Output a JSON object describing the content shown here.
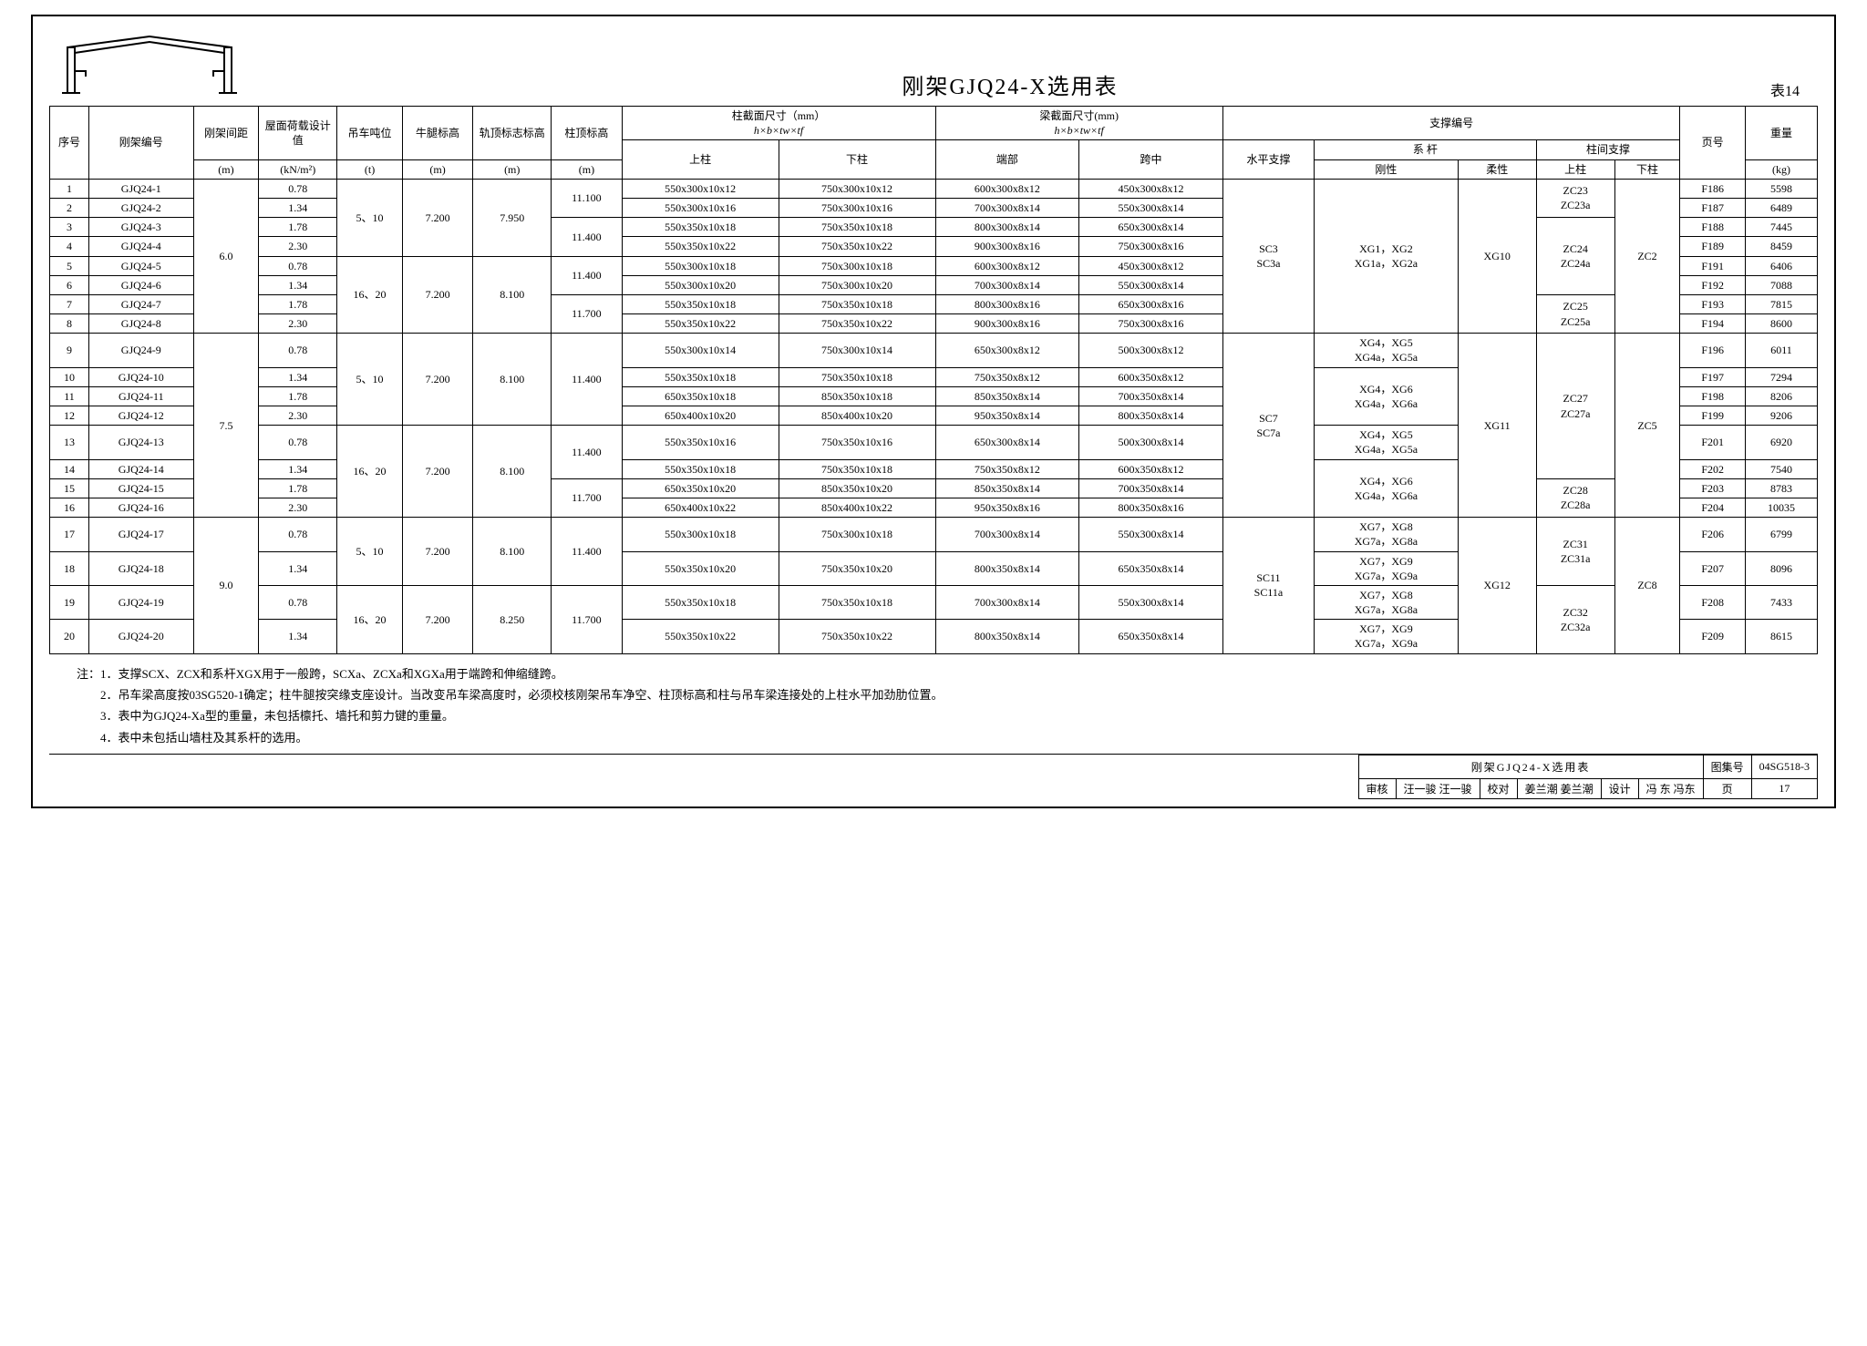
{
  "title": "刚架GJQ24-X选用表",
  "table_label": "表14",
  "header": {
    "seq": "序号",
    "frame_no": "刚架编号",
    "spacing": "刚架间距",
    "spacing_unit": "(m)",
    "roof_load": "屋面荷载设计值",
    "roof_load_unit": "(kN/m²)",
    "crane": "吊车吨位",
    "crane_unit": "(t)",
    "corbel": "牛腿标高",
    "corbel_unit": "(m)",
    "rail": "轨顶标志标高",
    "rail_unit": "(m)",
    "col_top": "柱顶标高",
    "col_top_unit": "(m)",
    "col_section": "柱截面尺寸（mm）",
    "beam_section": "梁截面尺寸(mm)",
    "formula": "h×b×tw×tf",
    "upper_col": "上柱",
    "lower_col": "下柱",
    "beam_end": "端部",
    "beam_mid": "跨中",
    "bracing_no": "支撑编号",
    "horiz": "水平支撑",
    "tie": "系 杆",
    "rigid": "刚性",
    "flex": "柔性",
    "col_brace": "柱间支撑",
    "cb_upper": "上柱",
    "cb_lower": "下柱",
    "page": "页号",
    "weight": "重量",
    "weight_unit": "(kg)"
  },
  "rows": [
    {
      "n": "1",
      "id": "GJQ24-1",
      "load": "0.78",
      "uc": "550x300x10x12",
      "lc": "750x300x10x12",
      "be": "600x300x8x12",
      "bm": "450x300x8x12",
      "pg": "F186",
      "wt": "5598"
    },
    {
      "n": "2",
      "id": "GJQ24-2",
      "load": "1.34",
      "uc": "550x300x10x16",
      "lc": "750x300x10x16",
      "be": "700x300x8x14",
      "bm": "550x300x8x14",
      "pg": "F187",
      "wt": "6489"
    },
    {
      "n": "3",
      "id": "GJQ24-3",
      "load": "1.78",
      "uc": "550x350x10x18",
      "lc": "750x350x10x18",
      "be": "800x300x8x14",
      "bm": "650x300x8x14",
      "pg": "F188",
      "wt": "7445"
    },
    {
      "n": "4",
      "id": "GJQ24-4",
      "load": "2.30",
      "uc": "550x350x10x22",
      "lc": "750x350x10x22",
      "be": "900x300x8x16",
      "bm": "750x300x8x16",
      "pg": "F189",
      "wt": "8459"
    },
    {
      "n": "5",
      "id": "GJQ24-5",
      "load": "0.78",
      "uc": "550x300x10x18",
      "lc": "750x300x10x18",
      "be": "600x300x8x12",
      "bm": "450x300x8x12",
      "pg": "F191",
      "wt": "6406"
    },
    {
      "n": "6",
      "id": "GJQ24-6",
      "load": "1.34",
      "uc": "550x300x10x20",
      "lc": "750x300x10x20",
      "be": "700x300x8x14",
      "bm": "550x300x8x14",
      "pg": "F192",
      "wt": "7088"
    },
    {
      "n": "7",
      "id": "GJQ24-7",
      "load": "1.78",
      "uc": "550x350x10x18",
      "lc": "750x350x10x18",
      "be": "800x300x8x16",
      "bm": "650x300x8x16",
      "pg": "F193",
      "wt": "7815"
    },
    {
      "n": "8",
      "id": "GJQ24-8",
      "load": "2.30",
      "uc": "550x350x10x22",
      "lc": "750x350x10x22",
      "be": "900x300x8x16",
      "bm": "750x300x8x16",
      "pg": "F194",
      "wt": "8600"
    },
    {
      "n": "9",
      "id": "GJQ24-9",
      "load": "0.78",
      "uc": "550x300x10x14",
      "lc": "750x300x10x14",
      "be": "650x300x8x12",
      "bm": "500x300x8x12",
      "pg": "F196",
      "wt": "6011"
    },
    {
      "n": "10",
      "id": "GJQ24-10",
      "load": "1.34",
      "uc": "550x350x10x18",
      "lc": "750x350x10x18",
      "be": "750x350x8x12",
      "bm": "600x350x8x12",
      "pg": "F197",
      "wt": "7294"
    },
    {
      "n": "11",
      "id": "GJQ24-11",
      "load": "1.78",
      "uc": "650x350x10x18",
      "lc": "850x350x10x18",
      "be": "850x350x8x14",
      "bm": "700x350x8x14",
      "pg": "F198",
      "wt": "8206"
    },
    {
      "n": "12",
      "id": "GJQ24-12",
      "load": "2.30",
      "uc": "650x400x10x20",
      "lc": "850x400x10x20",
      "be": "950x350x8x14",
      "bm": "800x350x8x14",
      "pg": "F199",
      "wt": "9206"
    },
    {
      "n": "13",
      "id": "GJQ24-13",
      "load": "0.78",
      "uc": "550x350x10x16",
      "lc": "750x350x10x16",
      "be": "650x300x8x14",
      "bm": "500x300x8x14",
      "pg": "F201",
      "wt": "6920"
    },
    {
      "n": "14",
      "id": "GJQ24-14",
      "load": "1.34",
      "uc": "550x350x10x18",
      "lc": "750x350x10x18",
      "be": "750x350x8x12",
      "bm": "600x350x8x12",
      "pg": "F202",
      "wt": "7540"
    },
    {
      "n": "15",
      "id": "GJQ24-15",
      "load": "1.78",
      "uc": "650x350x10x20",
      "lc": "850x350x10x20",
      "be": "850x350x8x14",
      "bm": "700x350x8x14",
      "pg": "F203",
      "wt": "8783"
    },
    {
      "n": "16",
      "id": "GJQ24-16",
      "load": "2.30",
      "uc": "650x400x10x22",
      "lc": "850x400x10x22",
      "be": "950x350x8x16",
      "bm": "800x350x8x16",
      "pg": "F204",
      "wt": "10035"
    },
    {
      "n": "17",
      "id": "GJQ24-17",
      "load": "0.78",
      "uc": "550x300x10x18",
      "lc": "750x300x10x18",
      "be": "700x300x8x14",
      "bm": "550x300x8x14",
      "pg": "F206",
      "wt": "6799"
    },
    {
      "n": "18",
      "id": "GJQ24-18",
      "load": "1.34",
      "uc": "550x350x10x20",
      "lc": "750x350x10x20",
      "be": "800x350x8x14",
      "bm": "650x350x8x14",
      "pg": "F207",
      "wt": "8096"
    },
    {
      "n": "19",
      "id": "GJQ24-19",
      "load": "0.78",
      "uc": "550x350x10x18",
      "lc": "750x350x10x18",
      "be": "700x300x8x14",
      "bm": "550x300x8x14",
      "pg": "F208",
      "wt": "7433"
    },
    {
      "n": "20",
      "id": "GJQ24-20",
      "load": "1.34",
      "uc": "550x350x10x22",
      "lc": "750x350x10x22",
      "be": "800x350x8x14",
      "bm": "650x350x8x14",
      "pg": "F209",
      "wt": "8615"
    }
  ],
  "groups": {
    "spacing_1": "6.0",
    "spacing_2": "7.5",
    "spacing_3": "9.0",
    "crane_a": "5、10",
    "crane_b": "16、20",
    "corbel_a": "7.200",
    "corbel_b": "7.200",
    "rail_a": "7.950",
    "rail_b": "8.100",
    "rail_c": "8.250",
    "coltop_1": "11.100",
    "coltop_2": "11.400",
    "coltop_5": "11.400",
    "coltop_7": "11.700",
    "coltop_9": "11.400",
    "coltop_13": "11.400",
    "coltop_15": "11.700",
    "coltop_17": "11.400",
    "coltop_19": "11.700",
    "horiz_1": "SC3\nSC3a",
    "horiz_2": "SC7\nSC7a",
    "horiz_3": "SC11\nSC11a",
    "rigid_1": "XG1，XG2\nXG1a，XG2a",
    "rigid_9": "XG4，XG5\nXG4a，XG5a",
    "rigid_10": "XG4，XG6\nXG4a，XG6a",
    "rigid_13": "XG4，XG5\nXG4a，XG5a",
    "rigid_14": "XG4，XG6\nXG4a，XG6a",
    "rigid_17": "XG7，XG8\nXG7a，XG8a",
    "rigid_18": "XG7，XG9\nXG7a，XG9a",
    "rigid_19": "XG7，XG8\nXG7a，XG8a",
    "rigid_20": "XG7，XG9\nXG7a，XG9a",
    "flex_1": "XG10",
    "flex_2": "XG11",
    "flex_3": "XG12",
    "cbu_1": "ZC23\nZC23a",
    "cbu_3": "ZC24\nZC24a",
    "cbu_7": "ZC25\nZC25a",
    "cbu_9": "ZC27\nZC27a",
    "cbu_15": "ZC28\nZC28a",
    "cbu_17": "ZC31\nZC31a",
    "cbu_19": "ZC32\nZC32a",
    "cbl_1": "ZC2",
    "cbl_2": "ZC5",
    "cbl_3": "ZC8"
  },
  "notes_label": "注：",
  "notes": [
    "1．支撑SCX、ZCX和系杆XGX用于一般跨，SCXa、ZCXa和XGXa用于端跨和伸缩缝跨。",
    "2．吊车梁高度按03SG520-1确定；柱牛腿按突缘支座设计。当改变吊车梁高度时，必须校核刚架吊车净空、柱顶标高和柱与吊车梁连接处的上柱水平加劲肋位置。",
    "3．表中为GJQ24-Xa型的重量，未包括檩托、墙托和剪力键的重量。",
    "4．表中未包括山墙柱及其系杆的选用。"
  ],
  "title_block": {
    "title": "刚架GJQ24-X选用表",
    "atlas_label": "图集号",
    "atlas": "04SG518-3",
    "review_label": "审核",
    "review_name": "汪一骏",
    "review_sig": "汪一骏",
    "check_label": "校对",
    "check_name": "姜兰潮",
    "check_sig": "姜兰潮",
    "design_label": "设计",
    "design_name": "冯 东",
    "design_sig": "冯东",
    "page_label": "页",
    "page_no": "17"
  }
}
